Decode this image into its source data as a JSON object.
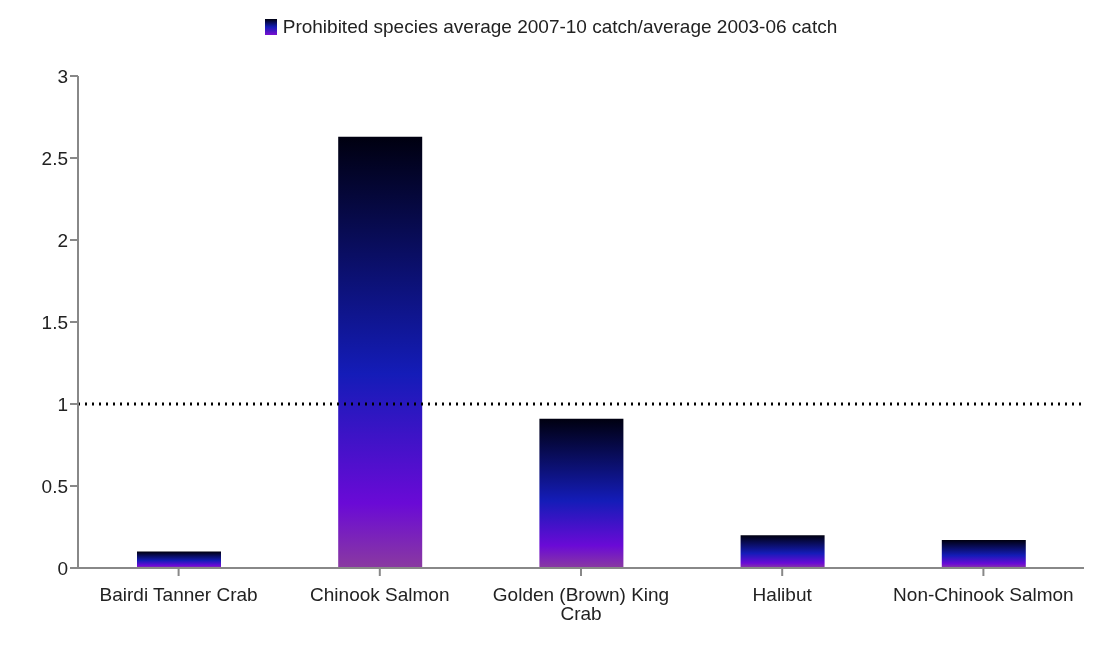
{
  "chart_data": {
    "type": "bar",
    "categories": [
      "Bairdi Tanner Crab",
      "Chinook Salmon",
      "Golden (Brown) King Crab",
      "Halibut",
      "Non-Chinook Salmon"
    ],
    "series": [
      {
        "name": "Prohibited species average 2007-10 catch/average 2003-06 catch",
        "color": "#141cb8",
        "values": [
          0.1,
          2.63,
          0.91,
          0.2,
          0.17
        ]
      }
    ],
    "ylim": [
      0,
      3
    ],
    "yticks": [
      0,
      0.5,
      1,
      1.5,
      2,
      2.5,
      3
    ],
    "grid": false,
    "legend": "top",
    "ref_lines": [
      {
        "axis": "y",
        "value": 1,
        "color": "#000000",
        "line_style": "dotted"
      }
    ]
  }
}
